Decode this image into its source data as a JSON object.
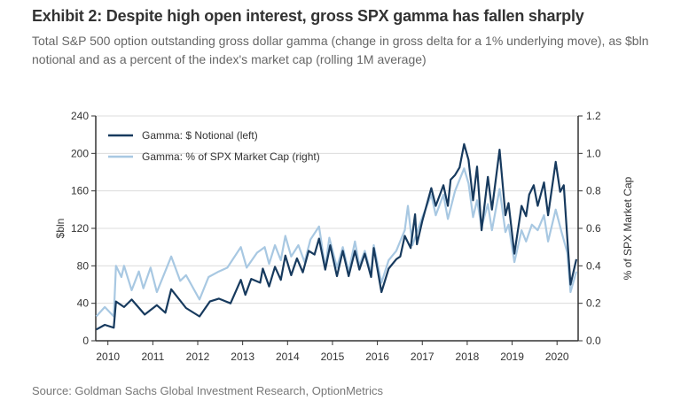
{
  "header": {
    "title": "Exhibit 2: Despite high open interest, gross SPX gamma has fallen sharply",
    "subtitle": "Total S&P 500 option outstanding gross dollar gamma (change in gross delta for a 1% underlying move), as $bln notional and as a percent of the index's market cap (rolling 1M average)"
  },
  "source": "Source: Goldman Sachs Global Investment Research, OptionMetrics",
  "chart_data": {
    "type": "line",
    "title": "Exhibit 2: Despite high open interest, gross SPX gamma has fallen sharply",
    "xlabel": "",
    "ylabel": "$bln",
    "y2label": "% of SPX Market Cap",
    "xlim": [
      2009.7,
      2020.45
    ],
    "ylim": [
      0,
      240
    ],
    "y2lim": [
      0,
      1.2
    ],
    "xticks": [
      "2010",
      "2011",
      "2012",
      "2013",
      "2014",
      "2015",
      "2016",
      "2017",
      "2018",
      "2019",
      "2020"
    ],
    "yticks": [
      "0",
      "40",
      "80",
      "120",
      "160",
      "200",
      "240"
    ],
    "y2ticks": [
      "0.0",
      "0.2",
      "0.4",
      "0.6",
      "0.8",
      "1.0",
      "1.2"
    ],
    "grid": true,
    "legend_position": "top-left",
    "colors": {
      "notional": "#173a5e",
      "pct": "#a8c8e2"
    },
    "series": [
      {
        "name": "Gamma: $ Notional (left)",
        "axis": "left",
        "x": [
          2009.74,
          2009.93,
          2010.13,
          2010.18,
          2010.36,
          2010.53,
          2010.82,
          2011.09,
          2011.28,
          2011.41,
          2011.74,
          2012.04,
          2012.27,
          2012.47,
          2012.73,
          2012.96,
          2013.06,
          2013.19,
          2013.39,
          2013.45,
          2013.59,
          2013.72,
          2013.85,
          2013.95,
          2014.08,
          2014.21,
          2014.34,
          2014.47,
          2014.6,
          2014.7,
          2014.84,
          2014.95,
          2015.1,
          2015.23,
          2015.36,
          2015.5,
          2015.6,
          2015.72,
          2015.86,
          2015.92,
          2016.09,
          2016.25,
          2016.42,
          2016.51,
          2016.61,
          2016.74,
          2016.84,
          2016.88,
          2017.0,
          2017.2,
          2017.3,
          2017.47,
          2017.57,
          2017.63,
          2017.73,
          2017.83,
          2017.93,
          2018.03,
          2018.13,
          2018.22,
          2018.32,
          2018.46,
          2018.55,
          2018.72,
          2018.85,
          2018.92,
          2019.05,
          2019.21,
          2019.31,
          2019.38,
          2019.48,
          2019.57,
          2019.71,
          2019.8,
          2019.97,
          2020.07,
          2020.15,
          2020.23,
          2020.3,
          2020.43
        ],
        "values": [
          12,
          17,
          14,
          42,
          36,
          44,
          28,
          38,
          30,
          55,
          35,
          26,
          42,
          45,
          40,
          65,
          49,
          66,
          62,
          77,
          58,
          79,
          65,
          91,
          70,
          88,
          73,
          96,
          92,
          109,
          76,
          102,
          69,
          96,
          69,
          96,
          76,
          93,
          68,
          99,
          52,
          77,
          87,
          90,
          112,
          99,
          135,
          103,
          128,
          163,
          144,
          166,
          144,
          172,
          177,
          185,
          210,
          193,
          150,
          186,
          118,
          175,
          140,
          204,
          134,
          147,
          93,
          144,
          133,
          156,
          166,
          144,
          169,
          134,
          191,
          159,
          166,
          109,
          60,
          87
        ]
      },
      {
        "name": "Gamma: % of SPX Market Cap (right)",
        "axis": "right",
        "x": [
          2009.74,
          2009.93,
          2010.13,
          2010.18,
          2010.3,
          2010.36,
          2010.53,
          2010.69,
          2010.79,
          2010.95,
          2011.09,
          2011.41,
          2011.61,
          2011.74,
          2012.04,
          2012.24,
          2012.47,
          2012.66,
          2012.96,
          2013.09,
          2013.32,
          2013.49,
          2013.59,
          2013.72,
          2013.85,
          2013.95,
          2014.08,
          2014.24,
          2014.38,
          2014.51,
          2014.7,
          2014.84,
          2014.93,
          2015.1,
          2015.23,
          2015.36,
          2015.5,
          2015.6,
          2015.72,
          2015.86,
          2015.92,
          2016.09,
          2016.25,
          2016.42,
          2016.61,
          2016.68,
          2016.78,
          2017.0,
          2017.2,
          2017.3,
          2017.47,
          2017.57,
          2017.73,
          2017.93,
          2018.03,
          2018.13,
          2018.22,
          2018.32,
          2018.46,
          2018.55,
          2018.72,
          2018.85,
          2018.92,
          2019.05,
          2019.21,
          2019.31,
          2019.44,
          2019.57,
          2019.71,
          2019.8,
          2019.97,
          2020.1,
          2020.23,
          2020.3,
          2020.43
        ],
        "values": [
          0.13,
          0.18,
          0.13,
          0.4,
          0.34,
          0.4,
          0.27,
          0.37,
          0.28,
          0.39,
          0.26,
          0.45,
          0.32,
          0.35,
          0.22,
          0.34,
          0.37,
          0.39,
          0.5,
          0.39,
          0.47,
          0.5,
          0.41,
          0.51,
          0.43,
          0.56,
          0.45,
          0.51,
          0.42,
          0.54,
          0.61,
          0.39,
          0.55,
          0.39,
          0.5,
          0.37,
          0.53,
          0.4,
          0.48,
          0.36,
          0.51,
          0.31,
          0.43,
          0.48,
          0.59,
          0.72,
          0.51,
          0.66,
          0.78,
          0.67,
          0.78,
          0.65,
          0.8,
          0.92,
          0.84,
          0.66,
          0.75,
          0.61,
          0.73,
          0.59,
          0.81,
          0.58,
          0.62,
          0.42,
          0.59,
          0.53,
          0.62,
          0.59,
          0.67,
          0.53,
          0.7,
          0.58,
          0.47,
          0.26,
          0.37
        ]
      }
    ]
  }
}
